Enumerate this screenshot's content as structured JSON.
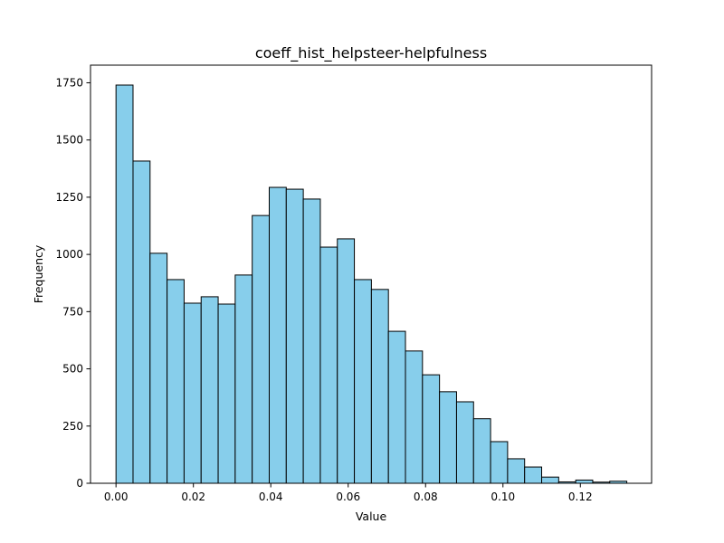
{
  "chart_data": {
    "type": "bar",
    "title": "coeff_hist_helpsteer-helpfulness",
    "xlabel": "Value",
    "ylabel": "Frequency",
    "xlim": [
      -0.00659,
      0.13841
    ],
    "ylim": [
      0,
      1827
    ],
    "bin_start": 0.0,
    "bin_width": 0.0044,
    "values": [
      1740,
      1408,
      1005,
      890,
      787,
      815,
      783,
      910,
      1170,
      1293,
      1285,
      1242,
      1032,
      1068,
      890,
      847,
      664,
      578,
      474,
      400,
      356,
      282,
      182,
      107,
      71,
      27,
      6,
      14,
      5,
      9
    ],
    "xticks": [
      0.0,
      0.02,
      0.04,
      0.06,
      0.08,
      0.1,
      0.12
    ],
    "xtick_labels": [
      "0.00",
      "0.02",
      "0.04",
      "0.06",
      "0.08",
      "0.10",
      "0.12"
    ],
    "yticks": [
      0,
      250,
      500,
      750,
      1000,
      1250,
      1500,
      1750
    ],
    "ytick_labels": [
      "0",
      "250",
      "500",
      "750",
      "1000",
      "1250",
      "1500",
      "1750"
    ],
    "grid": false,
    "legend": "none",
    "bar_color": "#87ceeb",
    "edge_color": "#000000"
  }
}
